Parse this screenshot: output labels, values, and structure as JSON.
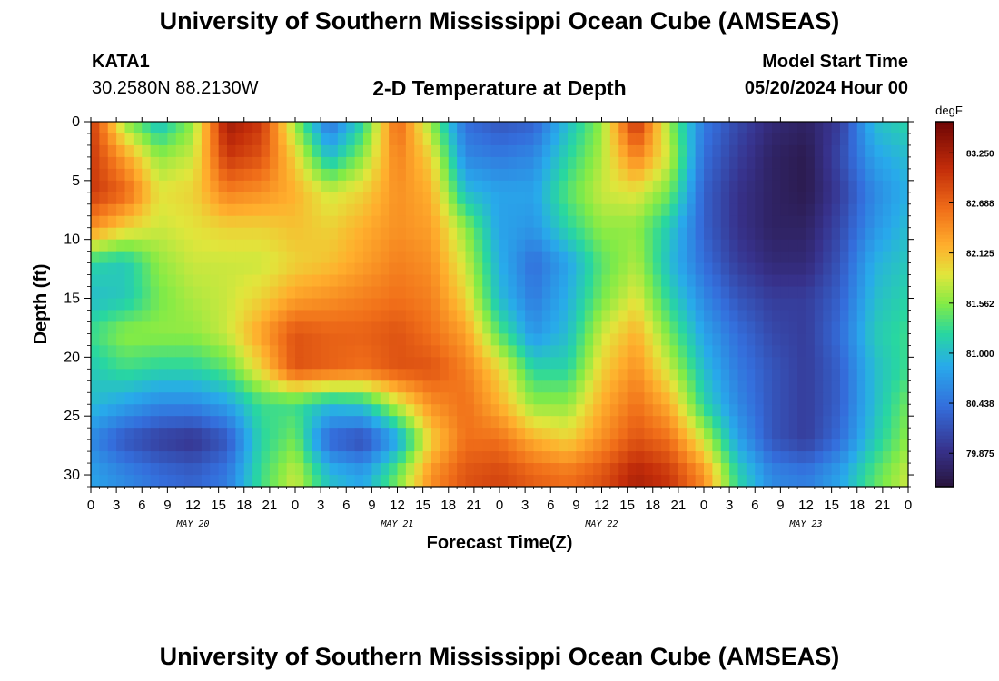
{
  "header": {
    "title": "University of Southern Mississippi Ocean Cube (AMSEAS)",
    "station": "KATA1",
    "coords": "30.2580N  88.2130W",
    "subtitle": "2-D Temperature at Depth",
    "model_start_label": "Model Start Time",
    "model_start_value": "05/20/2024 Hour 00"
  },
  "footer": {
    "title": "University of Southern Mississippi Ocean Cube (AMSEAS)"
  },
  "chart_data": {
    "type": "heatmap",
    "xlabel": "Forecast Time(Z)",
    "ylabel": "Depth (ft)",
    "x_tick_labels": [
      "0",
      "3",
      "6",
      "9",
      "12",
      "15",
      "18",
      "21",
      "0",
      "3",
      "6",
      "9",
      "12",
      "15",
      "18",
      "21",
      "0",
      "3",
      "6",
      "9",
      "12",
      "15",
      "18",
      "21",
      "0",
      "3",
      "6",
      "9",
      "12",
      "15",
      "18",
      "21",
      "0"
    ],
    "date_labels": [
      "MAY 20",
      "MAY 21",
      "MAY 22",
      "MAY 23"
    ],
    "xlim": [
      0,
      96
    ],
    "y_ticks": [
      0,
      5,
      10,
      15,
      20,
      25,
      30
    ],
    "ylim": [
      0,
      31
    ],
    "colorbar": {
      "unit": "degF",
      "ticks": [
        "83.250",
        "82.688",
        "82.125",
        "81.562",
        "81.000",
        "80.438",
        "79.875"
      ],
      "range": [
        79.5,
        83.6
      ]
    },
    "x_hours": [
      0,
      4,
      8,
      12,
      16,
      20,
      24,
      28,
      32,
      36,
      40,
      44,
      48,
      52,
      56,
      60,
      64,
      68,
      72,
      76,
      80,
      84,
      88,
      92,
      96
    ],
    "depths_ft": [
      0,
      3,
      6,
      9,
      12,
      15,
      18,
      21,
      24,
      27,
      30
    ],
    "values_degF": [
      [
        83.0,
        81.6,
        81.0,
        81.6,
        83.3,
        83.0,
        81.6,
        80.4,
        81.2,
        82.7,
        81.6,
        80.4,
        80.2,
        80.3,
        81.0,
        81.6,
        83.1,
        81.6,
        80.5,
        80.1,
        79.8,
        79.7,
        80.0,
        81.0,
        81.2
      ],
      [
        83.0,
        82.3,
        81.6,
        81.8,
        83.0,
        82.8,
        82.0,
        81.0,
        81.6,
        82.5,
        82.0,
        80.6,
        80.5,
        80.6,
        81.2,
        81.7,
        82.5,
        81.8,
        80.4,
        80.0,
        79.7,
        79.6,
        80.1,
        80.8,
        81.0
      ],
      [
        83.0,
        82.7,
        81.9,
        82.0,
        82.5,
        82.4,
        82.2,
        81.8,
        82.0,
        82.4,
        82.2,
        81.0,
        80.8,
        80.8,
        81.4,
        81.8,
        81.9,
        81.5,
        80.3,
        79.9,
        79.7,
        79.6,
        80.0,
        80.6,
        80.9
      ],
      [
        82.4,
        82.0,
        81.8,
        81.9,
        82.0,
        82.0,
        82.1,
        82.0,
        82.2,
        82.4,
        82.3,
        81.6,
        80.8,
        80.7,
        81.2,
        81.6,
        81.6,
        81.1,
        80.3,
        79.9,
        79.7,
        79.7,
        80.1,
        80.7,
        81.0
      ],
      [
        81.2,
        81.1,
        81.6,
        81.8,
        81.8,
        81.8,
        82.0,
        82.1,
        82.3,
        82.5,
        82.4,
        81.8,
        80.9,
        80.4,
        80.8,
        81.4,
        81.7,
        81.0,
        80.4,
        80.0,
        79.8,
        79.8,
        80.2,
        80.9,
        81.1
      ],
      [
        81.0,
        81.1,
        81.5,
        81.7,
        81.8,
        82.0,
        82.3,
        82.4,
        82.5,
        82.6,
        82.5,
        82.0,
        81.0,
        80.5,
        80.9,
        81.5,
        81.9,
        81.2,
        80.6,
        80.2,
        80.0,
        80.0,
        80.3,
        81.0,
        81.2
      ],
      [
        81.3,
        81.6,
        81.6,
        81.6,
        81.8,
        82.3,
        82.8,
        82.7,
        82.7,
        82.8,
        82.6,
        82.3,
        81.4,
        80.7,
        81.0,
        81.8,
        82.2,
        81.5,
        80.8,
        80.4,
        80.1,
        80.0,
        80.4,
        81.1,
        81.3
      ],
      [
        81.1,
        81.3,
        81.2,
        81.2,
        81.4,
        82.0,
        82.8,
        82.7,
        82.6,
        82.8,
        82.8,
        82.5,
        82.0,
        81.2,
        81.2,
        82.0,
        82.4,
        81.8,
        81.0,
        80.5,
        80.2,
        80.0,
        80.3,
        81.0,
        81.3
      ],
      [
        81.0,
        80.8,
        80.6,
        80.6,
        80.8,
        81.3,
        81.3,
        81.0,
        81.1,
        81.8,
        82.4,
        82.6,
        82.2,
        81.6,
        81.6,
        82.2,
        82.6,
        82.2,
        81.2,
        80.6,
        80.2,
        80.0,
        80.3,
        81.0,
        81.5
      ],
      [
        80.6,
        80.2,
        80.0,
        79.9,
        80.2,
        81.2,
        81.5,
        80.3,
        80.1,
        80.8,
        82.0,
        82.6,
        82.6,
        82.2,
        82.0,
        82.4,
        82.8,
        82.6,
        81.8,
        80.8,
        80.2,
        80.0,
        80.4,
        81.1,
        81.6
      ],
      [
        80.8,
        80.6,
        80.4,
        80.3,
        80.5,
        81.3,
        81.8,
        81.0,
        80.8,
        81.5,
        82.4,
        82.8,
        82.9,
        82.7,
        82.6,
        82.8,
        83.2,
        83.0,
        82.4,
        81.2,
        80.6,
        80.5,
        80.8,
        81.4,
        81.8
      ]
    ]
  }
}
